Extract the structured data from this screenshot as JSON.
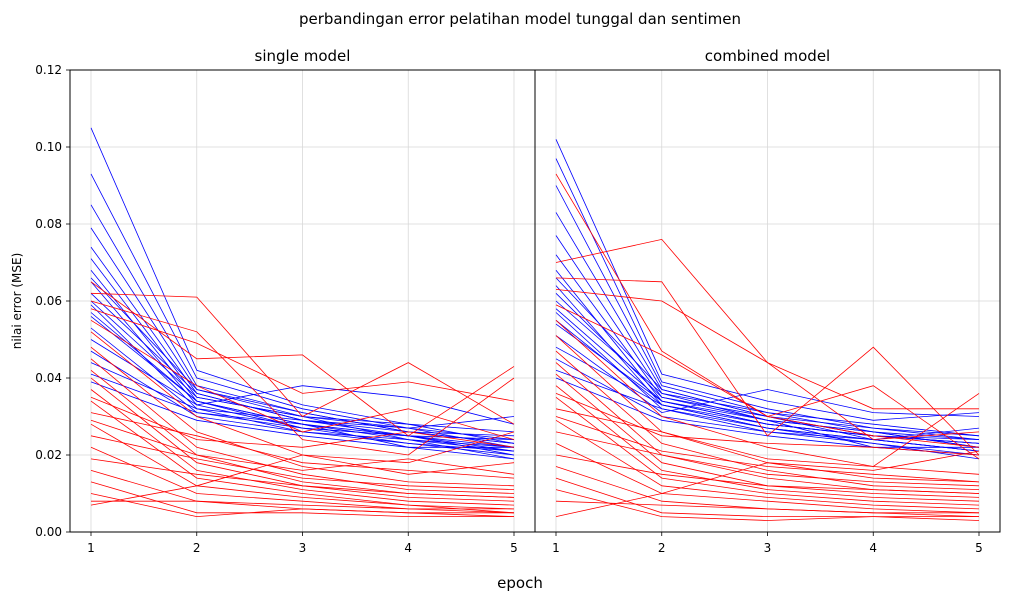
{
  "figure": {
    "suptitle": "perbandingan error pelatihan model tunggal dan sentimen",
    "supxlabel": "epoch",
    "ylabel": "nilai error (MSE)"
  },
  "chart_data": [
    {
      "type": "line",
      "title": "single model",
      "xlabel": "",
      "ylabel": "nilai error (MSE)",
      "x": [
        1,
        2,
        3,
        4,
        5
      ],
      "xticks": [
        "1",
        "2",
        "3",
        "4",
        "5"
      ],
      "yticks": [
        "0.00",
        "0.02",
        "0.04",
        "0.06",
        "0.08",
        "0.10",
        "0.12"
      ],
      "ylim": [
        0,
        0.12
      ],
      "grid": true,
      "series_colors": {
        "group_a": "#0000ff",
        "group_b": "#ff0000"
      },
      "series": [
        {
          "color": "blue",
          "values": [
            0.105,
            0.042,
            0.033,
            0.028,
            0.026
          ]
        },
        {
          "color": "blue",
          "values": [
            0.093,
            0.04,
            0.032,
            0.027,
            0.024
          ]
        },
        {
          "color": "blue",
          "values": [
            0.085,
            0.038,
            0.031,
            0.026,
            0.023
          ]
        },
        {
          "color": "blue",
          "values": [
            0.079,
            0.037,
            0.03,
            0.027,
            0.022
          ]
        },
        {
          "color": "blue",
          "values": [
            0.074,
            0.036,
            0.029,
            0.025,
            0.021
          ]
        },
        {
          "color": "blue",
          "values": [
            0.071,
            0.035,
            0.03,
            0.024,
            0.022
          ]
        },
        {
          "color": "blue",
          "values": [
            0.068,
            0.034,
            0.028,
            0.025,
            0.02
          ]
        },
        {
          "color": "blue",
          "values": [
            0.065,
            0.033,
            0.027,
            0.023,
            0.021
          ]
        },
        {
          "color": "blue",
          "values": [
            0.062,
            0.036,
            0.029,
            0.026,
            0.023
          ]
        },
        {
          "color": "blue",
          "values": [
            0.059,
            0.032,
            0.026,
            0.024,
            0.019
          ]
        },
        {
          "color": "blue",
          "values": [
            0.056,
            0.034,
            0.028,
            0.022,
            0.022
          ]
        },
        {
          "color": "blue",
          "values": [
            0.053,
            0.031,
            0.027,
            0.025,
            0.024
          ]
        },
        {
          "color": "blue",
          "values": [
            0.05,
            0.033,
            0.038,
            0.035,
            0.028
          ]
        },
        {
          "color": "blue",
          "values": [
            0.047,
            0.03,
            0.026,
            0.023,
            0.02
          ]
        },
        {
          "color": "blue",
          "values": [
            0.044,
            0.032,
            0.029,
            0.027,
            0.03
          ]
        },
        {
          "color": "blue",
          "values": [
            0.041,
            0.031,
            0.028,
            0.024,
            0.021
          ]
        },
        {
          "color": "blue",
          "values": [
            0.039,
            0.029,
            0.025,
            0.022,
            0.019
          ]
        },
        {
          "color": "blue",
          "values": [
            0.066,
            0.037,
            0.031,
            0.026,
            0.025
          ]
        },
        {
          "color": "blue",
          "values": [
            0.06,
            0.035,
            0.03,
            0.028,
            0.023
          ]
        },
        {
          "color": "blue",
          "values": [
            0.057,
            0.034,
            0.027,
            0.025,
            0.022
          ]
        },
        {
          "color": "red",
          "values": [
            0.065,
            0.045,
            0.046,
            0.025,
            0.043
          ]
        },
        {
          "color": "red",
          "values": [
            0.062,
            0.061,
            0.03,
            0.044,
            0.028
          ]
        },
        {
          "color": "red",
          "values": [
            0.06,
            0.052,
            0.024,
            0.02,
            0.04
          ]
        },
        {
          "color": "red",
          "values": [
            0.058,
            0.049,
            0.036,
            0.039,
            0.034
          ]
        },
        {
          "color": "red",
          "values": [
            0.055,
            0.038,
            0.026,
            0.032,
            0.024
          ]
        },
        {
          "color": "red",
          "values": [
            0.052,
            0.03,
            0.02,
            0.015,
            0.018
          ]
        },
        {
          "color": "red",
          "values": [
            0.048,
            0.026,
            0.017,
            0.013,
            0.012
          ]
        },
        {
          "color": "red",
          "values": [
            0.045,
            0.022,
            0.015,
            0.011,
            0.01
          ]
        },
        {
          "color": "red",
          "values": [
            0.042,
            0.02,
            0.013,
            0.01,
            0.009
          ]
        },
        {
          "color": "red",
          "values": [
            0.04,
            0.018,
            0.012,
            0.009,
            0.008
          ]
        },
        {
          "color": "red",
          "values": [
            0.037,
            0.016,
            0.011,
            0.008,
            0.007
          ]
        },
        {
          "color": "red",
          "values": [
            0.034,
            0.014,
            0.01,
            0.007,
            0.006
          ]
        },
        {
          "color": "red",
          "values": [
            0.031,
            0.025,
            0.018,
            0.016,
            0.014
          ]
        },
        {
          "color": "red",
          "values": [
            0.028,
            0.012,
            0.009,
            0.007,
            0.005
          ]
        },
        {
          "color": "red",
          "values": [
            0.025,
            0.019,
            0.014,
            0.012,
            0.011
          ]
        },
        {
          "color": "red",
          "values": [
            0.022,
            0.01,
            0.008,
            0.006,
            0.005
          ]
        },
        {
          "color": "red",
          "values": [
            0.019,
            0.015,
            0.012,
            0.01,
            0.009
          ]
        },
        {
          "color": "red",
          "values": [
            0.016,
            0.008,
            0.006,
            0.005,
            0.004
          ]
        },
        {
          "color": "red",
          "values": [
            0.013,
            0.005,
            0.005,
            0.004,
            0.004
          ]
        },
        {
          "color": "red",
          "values": [
            0.01,
            0.004,
            0.006,
            0.005,
            0.005
          ]
        },
        {
          "color": "red",
          "values": [
            0.008,
            0.008,
            0.007,
            0.006,
            0.006
          ]
        },
        {
          "color": "red",
          "values": [
            0.007,
            0.012,
            0.02,
            0.018,
            0.026
          ]
        },
        {
          "color": "red",
          "values": [
            0.035,
            0.024,
            0.022,
            0.026,
            0.022
          ]
        },
        {
          "color": "red",
          "values": [
            0.029,
            0.02,
            0.016,
            0.019,
            0.015
          ]
        }
      ]
    },
    {
      "type": "line",
      "title": "combined model",
      "xlabel": "",
      "x": [
        1,
        2,
        3,
        4,
        5
      ],
      "xticks": [
        "1",
        "2",
        "3",
        "4",
        "5"
      ],
      "ylim": [
        0,
        0.12
      ],
      "grid": true,
      "series_colors": {
        "group_a": "#0000ff",
        "group_b": "#ff0000"
      },
      "series": [
        {
          "color": "blue",
          "values": [
            0.102,
            0.041,
            0.034,
            0.029,
            0.031
          ]
        },
        {
          "color": "blue",
          "values": [
            0.097,
            0.039,
            0.032,
            0.027,
            0.025
          ]
        },
        {
          "color": "blue",
          "values": [
            0.09,
            0.038,
            0.031,
            0.026,
            0.024
          ]
        },
        {
          "color": "blue",
          "values": [
            0.083,
            0.037,
            0.03,
            0.025,
            0.023
          ]
        },
        {
          "color": "blue",
          "values": [
            0.077,
            0.036,
            0.029,
            0.026,
            0.022
          ]
        },
        {
          "color": "blue",
          "values": [
            0.072,
            0.035,
            0.03,
            0.024,
            0.021
          ]
        },
        {
          "color": "blue",
          "values": [
            0.068,
            0.034,
            0.028,
            0.025,
            0.023
          ]
        },
        {
          "color": "blue",
          "values": [
            0.064,
            0.033,
            0.027,
            0.023,
            0.02
          ]
        },
        {
          "color": "blue",
          "values": [
            0.06,
            0.036,
            0.031,
            0.028,
            0.025
          ]
        },
        {
          "color": "blue",
          "values": [
            0.057,
            0.032,
            0.026,
            0.024,
            0.021
          ]
        },
        {
          "color": "blue",
          "values": [
            0.054,
            0.034,
            0.029,
            0.022,
            0.022
          ]
        },
        {
          "color": "blue",
          "values": [
            0.051,
            0.031,
            0.037,
            0.031,
            0.03
          ]
        },
        {
          "color": "blue",
          "values": [
            0.048,
            0.033,
            0.028,
            0.025,
            0.024
          ]
        },
        {
          "color": "blue",
          "values": [
            0.045,
            0.03,
            0.026,
            0.023,
            0.019
          ]
        },
        {
          "color": "blue",
          "values": [
            0.042,
            0.032,
            0.027,
            0.024,
            0.027
          ]
        },
        {
          "color": "blue",
          "values": [
            0.04,
            0.029,
            0.025,
            0.022,
            0.02
          ]
        },
        {
          "color": "blue",
          "values": [
            0.066,
            0.037,
            0.03,
            0.027,
            0.024
          ]
        },
        {
          "color": "blue",
          "values": [
            0.062,
            0.035,
            0.029,
            0.026,
            0.022
          ]
        },
        {
          "color": "blue",
          "values": [
            0.058,
            0.034,
            0.028,
            0.025,
            0.023
          ]
        },
        {
          "color": "blue",
          "values": [
            0.055,
            0.033,
            0.027,
            0.024,
            0.021
          ]
        },
        {
          "color": "red",
          "values": [
            0.093,
            0.047,
            0.03,
            0.025,
            0.022
          ]
        },
        {
          "color": "red",
          "values": [
            0.07,
            0.076,
            0.044,
            0.024,
            0.026
          ]
        },
        {
          "color": "red",
          "values": [
            0.066,
            0.065,
            0.025,
            0.048,
            0.02
          ]
        },
        {
          "color": "red",
          "values": [
            0.063,
            0.06,
            0.044,
            0.032,
            0.032
          ]
        },
        {
          "color": "red",
          "values": [
            0.059,
            0.046,
            0.03,
            0.038,
            0.019
          ]
        },
        {
          "color": "red",
          "values": [
            0.055,
            0.03,
            0.022,
            0.017,
            0.036
          ]
        },
        {
          "color": "red",
          "values": [
            0.051,
            0.026,
            0.018,
            0.014,
            0.013
          ]
        },
        {
          "color": "red",
          "values": [
            0.047,
            0.023,
            0.016,
            0.012,
            0.011
          ]
        },
        {
          "color": "red",
          "values": [
            0.044,
            0.02,
            0.014,
            0.011,
            0.01
          ]
        },
        {
          "color": "red",
          "values": [
            0.041,
            0.018,
            0.012,
            0.01,
            0.009
          ]
        },
        {
          "color": "red",
          "values": [
            0.038,
            0.016,
            0.011,
            0.009,
            0.008
          ]
        },
        {
          "color": "red",
          "values": [
            0.035,
            0.014,
            0.01,
            0.008,
            0.007
          ]
        },
        {
          "color": "red",
          "values": [
            0.032,
            0.026,
            0.019,
            0.017,
            0.015
          ]
        },
        {
          "color": "red",
          "values": [
            0.029,
            0.012,
            0.009,
            0.007,
            0.006
          ]
        },
        {
          "color": "red",
          "values": [
            0.026,
            0.02,
            0.015,
            0.013,
            0.012
          ]
        },
        {
          "color": "red",
          "values": [
            0.023,
            0.01,
            0.008,
            0.006,
            0.005
          ]
        },
        {
          "color": "red",
          "values": [
            0.02,
            0.015,
            0.012,
            0.011,
            0.01
          ]
        },
        {
          "color": "red",
          "values": [
            0.017,
            0.008,
            0.006,
            0.005,
            0.004
          ]
        },
        {
          "color": "red",
          "values": [
            0.014,
            0.005,
            0.004,
            0.004,
            0.003
          ]
        },
        {
          "color": "red",
          "values": [
            0.011,
            0.004,
            0.003,
            0.004,
            0.004
          ]
        },
        {
          "color": "red",
          "values": [
            0.008,
            0.007,
            0.006,
            0.005,
            0.005
          ]
        },
        {
          "color": "red",
          "values": [
            0.004,
            0.01,
            0.018,
            0.016,
            0.021
          ]
        },
        {
          "color": "red",
          "values": [
            0.036,
            0.025,
            0.023,
            0.022,
            0.02
          ]
        },
        {
          "color": "red",
          "values": [
            0.03,
            0.021,
            0.017,
            0.015,
            0.013
          ]
        }
      ]
    }
  ]
}
